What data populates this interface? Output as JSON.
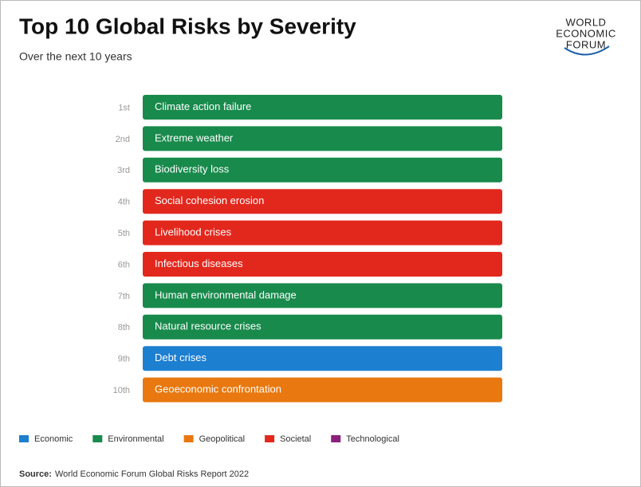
{
  "header": {
    "title": "Top 10 Global Risks by Severity",
    "subtitle": "Over the next 10 years",
    "logo": [
      "WORLD",
      "ECONOMIC",
      "FORUM"
    ]
  },
  "items": [
    {
      "rank": "1st",
      "label": "Climate action failure",
      "color": "#188a4c"
    },
    {
      "rank": "2nd",
      "label": "Extreme weather",
      "color": "#188a4c"
    },
    {
      "rank": "3rd",
      "label": "Biodiversity loss",
      "color": "#188a4c"
    },
    {
      "rank": "4th",
      "label": "Social cohesion erosion",
      "color": "#e2281d"
    },
    {
      "rank": "5th",
      "label": "Livelihood crises",
      "color": "#e2281d"
    },
    {
      "rank": "6th",
      "label": "Infectious diseases",
      "color": "#e2281d"
    },
    {
      "rank": "7th",
      "label": "Human environmental damage",
      "color": "#188a4c"
    },
    {
      "rank": "8th",
      "label": "Natural resource crises",
      "color": "#188a4c"
    },
    {
      "rank": "9th",
      "label": "Debt crises",
      "color": "#1d7fd0"
    },
    {
      "rank": "10th",
      "label": "Geoeconomic confrontation",
      "color": "#e8780f"
    }
  ],
  "legend": [
    {
      "name": "Economic",
      "color": "#1d7fd0"
    },
    {
      "name": "Environmental",
      "color": "#188a4c"
    },
    {
      "name": "Geopolitical",
      "color": "#e8780f"
    },
    {
      "name": "Societal",
      "color": "#e2281d"
    },
    {
      "name": "Technological",
      "color": "#8c1f7c"
    }
  ],
  "source": {
    "label": "Source:",
    "text": "World Economic Forum Global Risks Report 2022"
  }
}
